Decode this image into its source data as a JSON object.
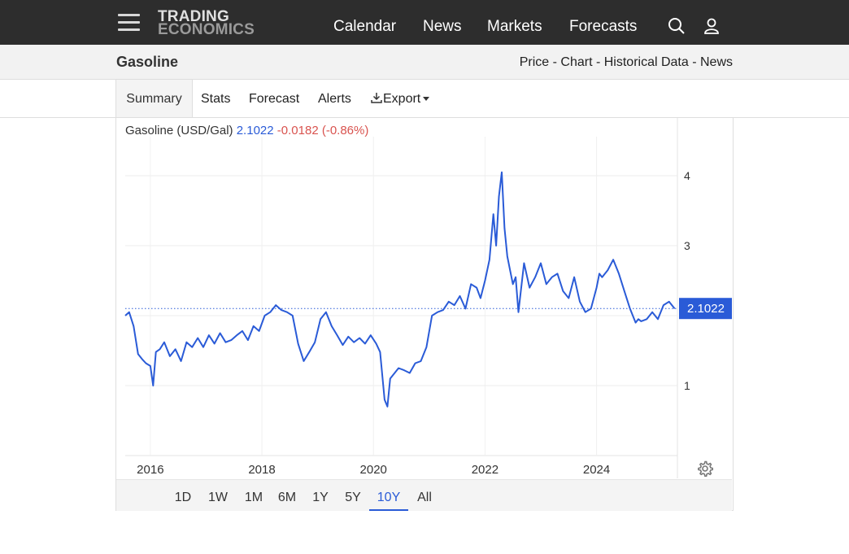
{
  "logo": {
    "line1": "TRADING",
    "line2": "ECONOMICS"
  },
  "nav": {
    "links": [
      "Calendar",
      "News",
      "Markets",
      "Forecasts"
    ],
    "icons": [
      "search-icon",
      "user-icon"
    ]
  },
  "subheader": {
    "title": "Gasoline",
    "links": [
      "Price",
      "Chart",
      "Historical Data",
      "News"
    ],
    "separator": " - "
  },
  "tabs": {
    "summary": "Summary",
    "stats": "Stats",
    "forecast": "Forecast",
    "alerts": "Alerts",
    "export": "Export"
  },
  "quote": {
    "name": "Gasoline (USD/Gal)",
    "price": "2.1022",
    "change": "-0.0182",
    "change_pct": "(-0.86%)"
  },
  "ranges": [
    "1D",
    "1W",
    "1M",
    "6M",
    "1Y",
    "5Y",
    "10Y",
    "All"
  ],
  "active_range": "10Y",
  "colors": {
    "line": "#2a5bd7",
    "accent": "#2a5bd7",
    "negative": "#d9534f",
    "nav_bg": "#2d2d2d"
  },
  "chart_data": {
    "type": "line",
    "series": [
      {
        "x": [
          2015.55,
          2015.62,
          2015.7,
          2015.78,
          2015.85,
          2015.92,
          2016.0,
          2016.05,
          2016.1,
          2016.17,
          2016.25,
          2016.35,
          2016.45,
          2016.55,
          2016.65,
          2016.75,
          2016.85,
          2016.95,
          2017.05,
          2017.15,
          2017.25,
          2017.35,
          2017.45,
          2017.55,
          2017.65,
          2017.75,
          2017.85,
          2017.95,
          2018.05,
          2018.15,
          2018.25,
          2018.35,
          2018.45,
          2018.55,
          2018.65,
          2018.75,
          2018.85,
          2018.95,
          2019.05,
          2019.15,
          2019.25,
          2019.35,
          2019.45,
          2019.55,
          2019.65,
          2019.75,
          2019.85,
          2019.95,
          2020.05,
          2020.12,
          2020.2,
          2020.25,
          2020.3,
          2020.35,
          2020.45,
          2020.55,
          2020.65,
          2020.75,
          2020.85,
          2020.95,
          2021.05,
          2021.15,
          2021.25,
          2021.35,
          2021.45,
          2021.55,
          2021.65,
          2021.75,
          2021.85,
          2021.92,
          2022.0,
          2022.08,
          2022.15,
          2022.2,
          2022.25,
          2022.3,
          2022.35,
          2022.4,
          2022.45,
          2022.5,
          2022.55,
          2022.6,
          2022.7,
          2022.8,
          2022.9,
          2023.0,
          2023.1,
          2023.2,
          2023.3,
          2023.4,
          2023.5,
          2023.6,
          2023.7,
          2023.8,
          2023.9,
          2024.0,
          2024.05,
          2024.1,
          2024.2,
          2024.3,
          2024.4,
          2024.5,
          2024.6,
          2024.7,
          2024.75,
          2024.8,
          2024.9,
          2025.0,
          2025.1,
          2025.2,
          2025.3,
          2025.4
        ],
        "y": [
          2.0,
          2.05,
          1.85,
          1.45,
          1.38,
          1.32,
          1.28,
          1.0,
          1.48,
          1.52,
          1.62,
          1.42,
          1.52,
          1.35,
          1.62,
          1.55,
          1.68,
          1.55,
          1.72,
          1.6,
          1.75,
          1.62,
          1.65,
          1.72,
          1.78,
          1.65,
          1.85,
          1.78,
          2.0,
          2.05,
          2.15,
          2.08,
          2.05,
          2.0,
          1.6,
          1.35,
          1.48,
          1.62,
          1.95,
          2.05,
          1.85,
          1.72,
          1.58,
          1.7,
          1.62,
          1.68,
          1.6,
          1.72,
          1.6,
          1.48,
          0.8,
          0.7,
          1.1,
          1.15,
          1.25,
          1.22,
          1.18,
          1.32,
          1.35,
          1.55,
          2.0,
          2.05,
          2.08,
          2.2,
          2.15,
          2.28,
          2.1,
          2.45,
          2.4,
          2.25,
          2.5,
          2.8,
          3.45,
          3.0,
          3.7,
          4.05,
          3.25,
          2.85,
          2.65,
          2.45,
          2.55,
          2.05,
          2.75,
          2.4,
          2.55,
          2.75,
          2.45,
          2.55,
          2.6,
          2.35,
          2.25,
          2.55,
          2.2,
          2.05,
          2.1,
          2.4,
          2.6,
          2.55,
          2.65,
          2.8,
          2.6,
          2.35,
          2.1,
          1.9,
          1.95,
          1.92,
          1.95,
          2.05,
          1.95,
          2.15,
          2.2,
          2.1
        ]
      }
    ],
    "current_value": 2.1022,
    "x_ticks": [
      2016,
      2018,
      2020,
      2022,
      2024
    ],
    "y_ticks": [
      1,
      2,
      3,
      4
    ],
    "y_tick_labels": [
      "1",
      "",
      "3",
      "4"
    ],
    "xlim": [
      2015.55,
      2025.45
    ],
    "ylim": [
      0,
      4.5
    ],
    "y_axis_side": "right",
    "grid": true
  }
}
